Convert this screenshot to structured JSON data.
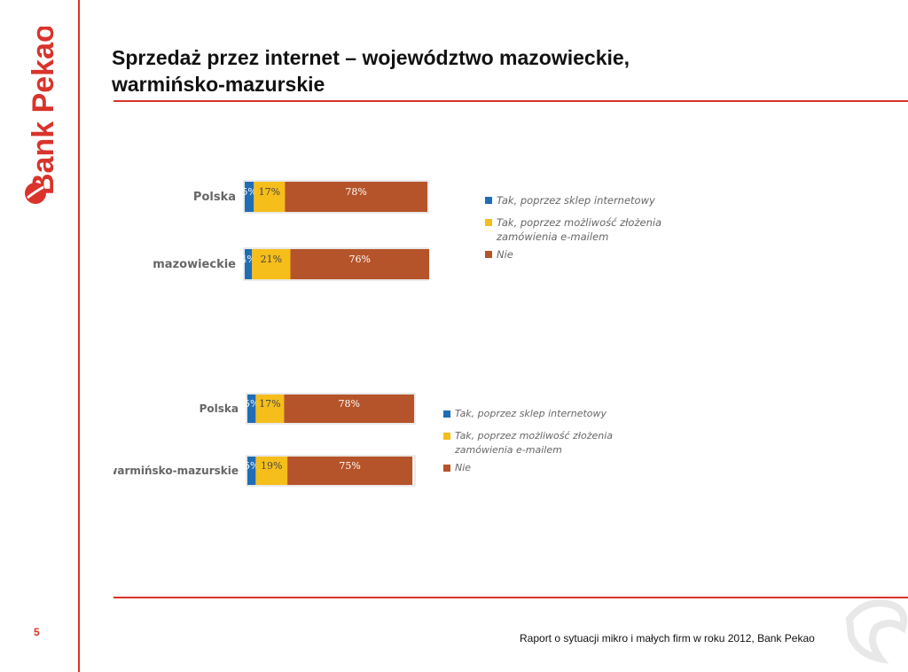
{
  "brand": {
    "name": "Bank Pekao",
    "color": "#d9332b"
  },
  "page": {
    "title_line1": "Sprzedaż przez internet – województwo mazowieckie,",
    "title_line2": "warmińsko-mazurskie",
    "page_number": "5",
    "footer": "Raport  o sytuacji mikro i małych firm w roku 2012, Bank Pekao"
  },
  "chart_data": [
    {
      "type": "bar",
      "orientation": "horizontal",
      "stacked": true,
      "categories": [
        "Polska",
        "mazowieckie"
      ],
      "series": [
        {
          "name": "Tak, poprzez sklep internetowy",
          "color": "#1f6db5",
          "values": [
            5,
            4
          ]
        },
        {
          "name": "Tak, poprzez możliwość złożenia zamówienia e-mailem",
          "color": "#f5be1a",
          "values": [
            17,
            21
          ]
        },
        {
          "name": "Nie",
          "color": "#b5542a",
          "values": [
            78,
            76
          ]
        }
      ],
      "data_labels": [
        [
          "5%",
          "17%",
          "78%"
        ],
        [
          "4%",
          "21%",
          "76%"
        ]
      ],
      "xlim": [
        0,
        100
      ],
      "legend": "right"
    },
    {
      "type": "bar",
      "orientation": "horizontal",
      "stacked": true,
      "categories": [
        "Polska",
        "warmińsko-mazurskie"
      ],
      "series": [
        {
          "name": "Tak, poprzez sklep internetowy",
          "color": "#1f6db5",
          "values": [
            5,
            5
          ]
        },
        {
          "name": "Tak, poprzez możliwość złożenia zamówienia e-mailem",
          "color": "#f5be1a",
          "values": [
            17,
            19
          ]
        },
        {
          "name": "Nie",
          "color": "#b5542a",
          "values": [
            78,
            75
          ]
        }
      ],
      "data_labels": [
        [
          "5%",
          "17%",
          "78%"
        ],
        [
          "5%",
          "19%",
          "75%"
        ]
      ],
      "xlim": [
        0,
        100
      ],
      "legend": "right"
    }
  ],
  "legends": [
    [
      {
        "line1": "Tak, poprzez sklep internetowy",
        "line2": ""
      },
      {
        "line1": "Tak, poprzez możliwość złożenia",
        "line2": "zamówienia e-mailem"
      },
      {
        "line1": "Nie",
        "line2": ""
      }
    ],
    [
      {
        "line1": "Tak, poprzez sklep internetowy",
        "line2": ""
      },
      {
        "line1": "Tak, poprzez możliwość złożenia",
        "line2": "zamówienia e-mailem"
      },
      {
        "line1": "Nie",
        "line2": ""
      }
    ]
  ]
}
